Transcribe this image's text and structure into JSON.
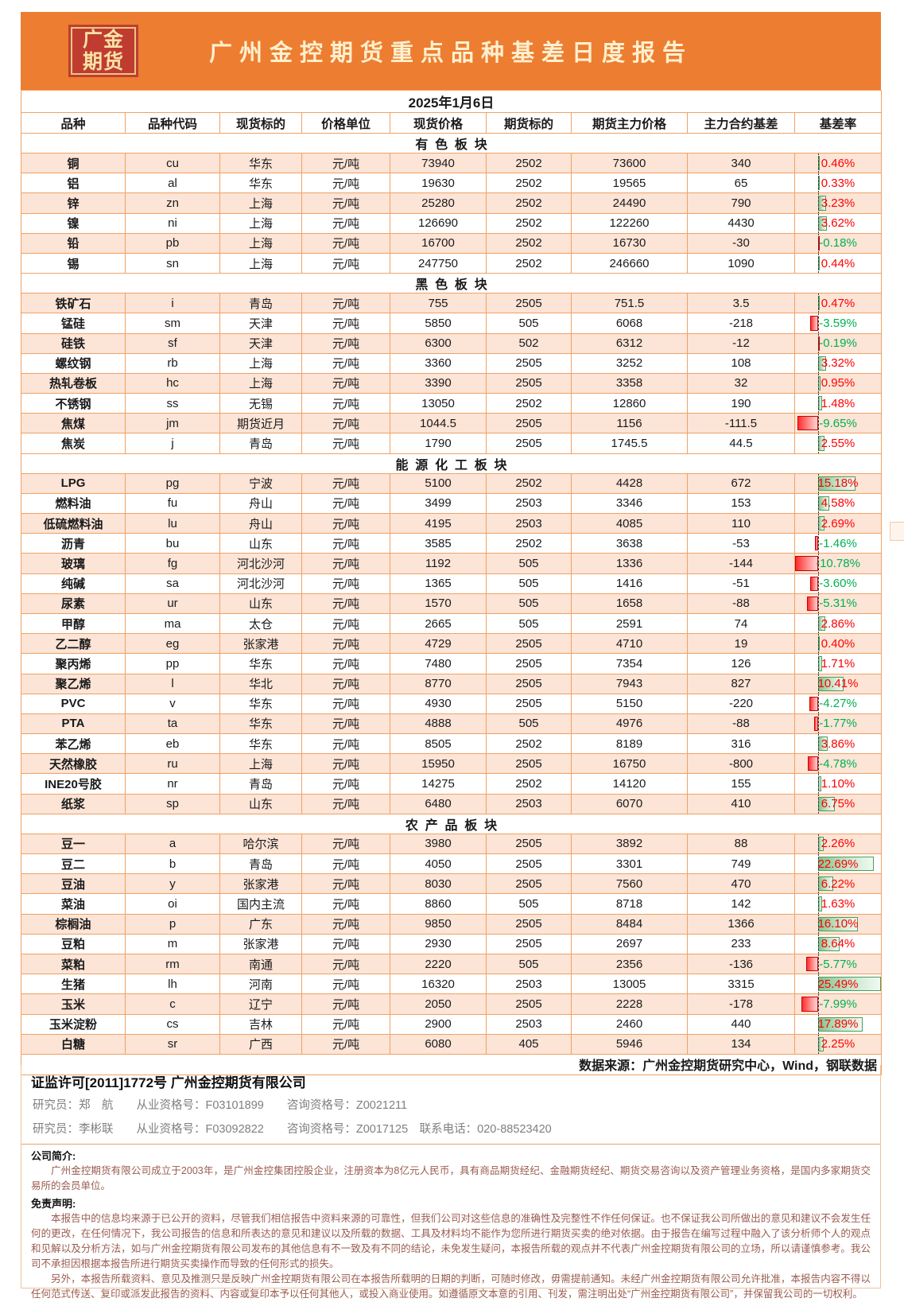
{
  "header": {
    "logo_line1": "广金",
    "logo_line2": "期货",
    "title": "广州金控期货重点品种基差日度报告"
  },
  "table": {
    "date": "2025年1月6日",
    "columns": [
      "品种",
      "品种代码",
      "现货标的",
      "价格单位",
      "现货价格",
      "期货标的",
      "期货主力价格",
      "主力合约基差",
      "基差率"
    ],
    "bar_axis": {
      "axis_fraction": 0.27,
      "max_positive": 25.49,
      "max_negative": 10.78
    },
    "sections": [
      {
        "name": "有色板块",
        "rows": [
          {
            "name": "铜",
            "code": "cu",
            "spot": "华东",
            "unit": "元/吨",
            "spot_price": "73940",
            "fut_code": "2502",
            "fut_price": "73600",
            "basis": "340",
            "rate": "0.46%",
            "rate_value": 0.46
          },
          {
            "name": "铝",
            "code": "al",
            "spot": "华东",
            "unit": "元/吨",
            "spot_price": "19630",
            "fut_code": "2502",
            "fut_price": "19565",
            "basis": "65",
            "rate": "0.33%",
            "rate_value": 0.33
          },
          {
            "name": "锌",
            "code": "zn",
            "spot": "上海",
            "unit": "元/吨",
            "spot_price": "25280",
            "fut_code": "2502",
            "fut_price": "24490",
            "basis": "790",
            "rate": "3.23%",
            "rate_value": 3.23
          },
          {
            "name": "镍",
            "code": "ni",
            "spot": "上海",
            "unit": "元/吨",
            "spot_price": "126690",
            "fut_code": "2502",
            "fut_price": "122260",
            "basis": "4430",
            "rate": "3.62%",
            "rate_value": 3.62
          },
          {
            "name": "铅",
            "code": "pb",
            "spot": "上海",
            "unit": "元/吨",
            "spot_price": "16700",
            "fut_code": "2502",
            "fut_price": "16730",
            "basis": "-30",
            "rate": "-0.18%",
            "rate_value": -0.18
          },
          {
            "name": "锡",
            "code": "sn",
            "spot": "上海",
            "unit": "元/吨",
            "spot_price": "247750",
            "fut_code": "2502",
            "fut_price": "246660",
            "basis": "1090",
            "rate": "0.44%",
            "rate_value": 0.44
          }
        ]
      },
      {
        "name": "黑色板块",
        "rows": [
          {
            "name": "铁矿石",
            "code": "i",
            "spot": "青岛",
            "unit": "元/吨",
            "spot_price": "755",
            "fut_code": "2505",
            "fut_price": "751.5",
            "basis": "3.5",
            "rate": "0.47%",
            "rate_value": 0.47
          },
          {
            "name": "锰硅",
            "code": "sm",
            "spot": "天津",
            "unit": "元/吨",
            "spot_price": "5850",
            "fut_code": "505",
            "fut_price": "6068",
            "basis": "-218",
            "rate": "-3.59%",
            "rate_value": -3.59
          },
          {
            "name": "硅铁",
            "code": "sf",
            "spot": "天津",
            "unit": "元/吨",
            "spot_price": "6300",
            "fut_code": "502",
            "fut_price": "6312",
            "basis": "-12",
            "rate": "-0.19%",
            "rate_value": -0.19
          },
          {
            "name": "螺纹钢",
            "code": "rb",
            "spot": "上海",
            "unit": "元/吨",
            "spot_price": "3360",
            "fut_code": "2505",
            "fut_price": "3252",
            "basis": "108",
            "rate": "3.32%",
            "rate_value": 3.32
          },
          {
            "name": "热轧卷板",
            "code": "hc",
            "spot": "上海",
            "unit": "元/吨",
            "spot_price": "3390",
            "fut_code": "2505",
            "fut_price": "3358",
            "basis": "32",
            "rate": "0.95%",
            "rate_value": 0.95
          },
          {
            "name": "不锈钢",
            "code": "ss",
            "spot": "无锡",
            "unit": "元/吨",
            "spot_price": "13050",
            "fut_code": "2502",
            "fut_price": "12860",
            "basis": "190",
            "rate": "1.48%",
            "rate_value": 1.48
          },
          {
            "name": "焦煤",
            "code": "jm",
            "spot": "期货近月",
            "unit": "元/吨",
            "spot_price": "1044.5",
            "fut_code": "2505",
            "fut_price": "1156",
            "basis": "-111.5",
            "rate": "-9.65%",
            "rate_value": -9.65
          },
          {
            "name": "焦炭",
            "code": "j",
            "spot": "青岛",
            "unit": "元/吨",
            "spot_price": "1790",
            "fut_code": "2505",
            "fut_price": "1745.5",
            "basis": "44.5",
            "rate": "2.55%",
            "rate_value": 2.55
          }
        ]
      },
      {
        "name": "能源化工板块",
        "rows": [
          {
            "name": "LPG",
            "code": "pg",
            "spot": "宁波",
            "unit": "元/吨",
            "spot_price": "5100",
            "fut_code": "2502",
            "fut_price": "4428",
            "basis": "672",
            "rate": "15.18%",
            "rate_value": 15.18
          },
          {
            "name": "燃料油",
            "code": "fu",
            "spot": "舟山",
            "unit": "元/吨",
            "spot_price": "3499",
            "fut_code": "2503",
            "fut_price": "3346",
            "basis": "153",
            "rate": "4.58%",
            "rate_value": 4.58
          },
          {
            "name": "低硫燃料油",
            "code": "lu",
            "spot": "舟山",
            "unit": "元/吨",
            "spot_price": "4195",
            "fut_code": "2503",
            "fut_price": "4085",
            "basis": "110",
            "rate": "2.69%",
            "rate_value": 2.69
          },
          {
            "name": "沥青",
            "code": "bu",
            "spot": "山东",
            "unit": "元/吨",
            "spot_price": "3585",
            "fut_code": "2502",
            "fut_price": "3638",
            "basis": "-53",
            "rate": "-1.46%",
            "rate_value": -1.46
          },
          {
            "name": "玻璃",
            "code": "fg",
            "spot": "河北沙河",
            "unit": "元/吨",
            "spot_price": "1192",
            "fut_code": "505",
            "fut_price": "1336",
            "basis": "-144",
            "rate": "-10.78%",
            "rate_value": -10.78
          },
          {
            "name": "纯碱",
            "code": "sa",
            "spot": "河北沙河",
            "unit": "元/吨",
            "spot_price": "1365",
            "fut_code": "505",
            "fut_price": "1416",
            "basis": "-51",
            "rate": "-3.60%",
            "rate_value": -3.6
          },
          {
            "name": "尿素",
            "code": "ur",
            "spot": "山东",
            "unit": "元/吨",
            "spot_price": "1570",
            "fut_code": "505",
            "fut_price": "1658",
            "basis": "-88",
            "rate": "-5.31%",
            "rate_value": -5.31
          },
          {
            "name": "甲醇",
            "code": "ma",
            "spot": "太仓",
            "unit": "元/吨",
            "spot_price": "2665",
            "fut_code": "505",
            "fut_price": "2591",
            "basis": "74",
            "rate": "2.86%",
            "rate_value": 2.86
          },
          {
            "name": "乙二醇",
            "code": "eg",
            "spot": "张家港",
            "unit": "元/吨",
            "spot_price": "4729",
            "fut_code": "2505",
            "fut_price": "4710",
            "basis": "19",
            "rate": "0.40%",
            "rate_value": 0.4
          },
          {
            "name": "聚丙烯",
            "code": "pp",
            "spot": "华东",
            "unit": "元/吨",
            "spot_price": "7480",
            "fut_code": "2505",
            "fut_price": "7354",
            "basis": "126",
            "rate": "1.71%",
            "rate_value": 1.71
          },
          {
            "name": "聚乙烯",
            "code": "l",
            "spot": "华北",
            "unit": "元/吨",
            "spot_price": "8770",
            "fut_code": "2505",
            "fut_price": "7943",
            "basis": "827",
            "rate": "10.41%",
            "rate_value": 10.41
          },
          {
            "name": "PVC",
            "code": "v",
            "spot": "华东",
            "unit": "元/吨",
            "spot_price": "4930",
            "fut_code": "2505",
            "fut_price": "5150",
            "basis": "-220",
            "rate": "-4.27%",
            "rate_value": -4.27
          },
          {
            "name": "PTA",
            "code": "ta",
            "spot": "华东",
            "unit": "元/吨",
            "spot_price": "4888",
            "fut_code": "505",
            "fut_price": "4976",
            "basis": "-88",
            "rate": "-1.77%",
            "rate_value": -1.77
          },
          {
            "name": "苯乙烯",
            "code": "eb",
            "spot": "华东",
            "unit": "元/吨",
            "spot_price": "8505",
            "fut_code": "2502",
            "fut_price": "8189",
            "basis": "316",
            "rate": "3.86%",
            "rate_value": 3.86
          },
          {
            "name": "天然橡胶",
            "code": "ru",
            "spot": "上海",
            "unit": "元/吨",
            "spot_price": "15950",
            "fut_code": "2505",
            "fut_price": "16750",
            "basis": "-800",
            "rate": "-4.78%",
            "rate_value": -4.78
          },
          {
            "name": "INE20号胶",
            "code": "nr",
            "spot": "青岛",
            "unit": "元/吨",
            "spot_price": "14275",
            "fut_code": "2502",
            "fut_price": "14120",
            "basis": "155",
            "rate": "1.10%",
            "rate_value": 1.1
          },
          {
            "name": "纸浆",
            "code": "sp",
            "spot": "山东",
            "unit": "元/吨",
            "spot_price": "6480",
            "fut_code": "2503",
            "fut_price": "6070",
            "basis": "410",
            "rate": "6.75%",
            "rate_value": 6.75
          }
        ]
      },
      {
        "name": "农产品板块",
        "rows": [
          {
            "name": "豆一",
            "code": "a",
            "spot": "哈尔滨",
            "unit": "元/吨",
            "spot_price": "3980",
            "fut_code": "2505",
            "fut_price": "3892",
            "basis": "88",
            "rate": "2.26%",
            "rate_value": 2.26
          },
          {
            "name": "豆二",
            "code": "b",
            "spot": "青岛",
            "unit": "元/吨",
            "spot_price": "4050",
            "fut_code": "2505",
            "fut_price": "3301",
            "basis": "749",
            "rate": "22.69%",
            "rate_value": 22.69
          },
          {
            "name": "豆油",
            "code": "y",
            "spot": "张家港",
            "unit": "元/吨",
            "spot_price": "8030",
            "fut_code": "2505",
            "fut_price": "7560",
            "basis": "470",
            "rate": "6.22%",
            "rate_value": 6.22
          },
          {
            "name": "菜油",
            "code": "oi",
            "spot": "国内主流",
            "unit": "元/吨",
            "spot_price": "8860",
            "fut_code": "505",
            "fut_price": "8718",
            "basis": "142",
            "rate": "1.63%",
            "rate_value": 1.63
          },
          {
            "name": "棕榈油",
            "code": "p",
            "spot": "广东",
            "unit": "元/吨",
            "spot_price": "9850",
            "fut_code": "2505",
            "fut_price": "8484",
            "basis": "1366",
            "rate": "16.10%",
            "rate_value": 16.1
          },
          {
            "name": "豆粕",
            "code": "m",
            "spot": "张家港",
            "unit": "元/吨",
            "spot_price": "2930",
            "fut_code": "2505",
            "fut_price": "2697",
            "basis": "233",
            "rate": "8.64%",
            "rate_value": 8.64
          },
          {
            "name": "菜粕",
            "code": "rm",
            "spot": "南通",
            "unit": "元/吨",
            "spot_price": "2220",
            "fut_code": "505",
            "fut_price": "2356",
            "basis": "-136",
            "rate": "-5.77%",
            "rate_value": -5.77
          },
          {
            "name": "生猪",
            "code": "lh",
            "spot": "河南",
            "unit": "元/吨",
            "spot_price": "16320",
            "fut_code": "2503",
            "fut_price": "13005",
            "basis": "3315",
            "rate": "25.49%",
            "rate_value": 25.49
          },
          {
            "name": "玉米",
            "code": "c",
            "spot": "辽宁",
            "unit": "元/吨",
            "spot_price": "2050",
            "fut_code": "2505",
            "fut_price": "2228",
            "basis": "-178",
            "rate": "-7.99%",
            "rate_value": -7.99
          },
          {
            "name": "玉米淀粉",
            "code": "cs",
            "spot": "吉林",
            "unit": "元/吨",
            "spot_price": "2900",
            "fut_code": "2503",
            "fut_price": "2460",
            "basis": "440",
            "rate": "17.89%",
            "rate_value": 17.89
          },
          {
            "name": "白糖",
            "code": "sr",
            "spot": "广西",
            "unit": "元/吨",
            "spot_price": "6080",
            "fut_code": "405",
            "fut_price": "5946",
            "basis": "134",
            "rate": "2.25%",
            "rate_value": 2.25
          }
        ]
      }
    ],
    "source_note": "数据来源：广州金控期货研究中心，Wind，钢联数据"
  },
  "footer": {
    "license_line": "证监许可[2011]1772号 广州金控期货有限公司",
    "researcher_line1": "研究员：郑　航　　从业资格号：F03101899　　咨询资格号：Z0021211",
    "researcher_line2": "研究员：李彬联　　从业资格号：F03092822　　咨询资格号：Z0017125　联系电话：020-88523420",
    "company_intro_title": "公司简介:",
    "company_intro": "广州金控期货有限公司成立于2003年，是广州金控集团控股企业，注册资本为8亿元人民币，具有商品期货经纪、金融期货经纪、期货交易咨询以及资产管理业务资格，是国内多家期货交易所的会员单位。",
    "disclaimer_title": "免责声明:",
    "disclaimer_p1": "本报告中的信息均来源于已公开的资料，尽管我们相信报告中资料来源的可靠性，但我们公司对这些信息的准确性及完整性不作任何保证。也不保证我公司所做出的意见和建议不会发生任何的更改，在任何情况下，我公司报告的信息和所表达的意见和建议以及所载的数据、工具及材料均不能作为您所进行期货买卖的绝对依据。由于报告在编写过程中融入了该分析师个人的观点和见解以及分析方法，如与广州金控期货有限公司发布的其他信息有不一致及有不同的结论，未免发生疑问，本报告所载的观点并不代表广州金控期货有限公司的立场，所以请谨慎参考。我公司不承担因根据本报告所进行期货买卖操作而导致的任何形式的损失。",
    "disclaimer_p2": "另外，本报告所载资料、意见及推测只是反映广州金控期货有限公司在本报告所载明的日期的判断，可随时修改，毋需提前通知。未经广州金控期货有限公司允许批准，本报告内容不得以任何范式传送、复印或派发此报告的资料、内容或复印本予以任何其他人，或投入商业使用。如遵循原文本意的引用、刊发，需注明出处“广州金控期货有限公司”，并保留我公司的一切权利。"
  },
  "colors": {
    "banner": "#ED7D31",
    "logo_background": "#C03C31",
    "logo_text": "#F6E2A6",
    "title_text": "#FDF0CE",
    "row_stripe": "#FCE4D6",
    "grid_line": "#F0A265",
    "futures_code_text": "#C00000",
    "positive_rate_text": "#FF0000",
    "negative_rate_text": "#00B050",
    "positive_bar": "#84C48E",
    "negative_bar": "#FF2D2D"
  }
}
